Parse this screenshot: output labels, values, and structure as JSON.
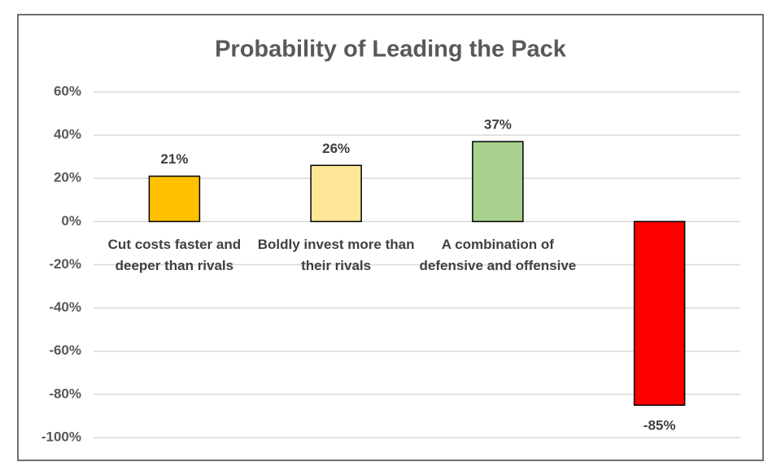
{
  "chart_data": {
    "type": "bar",
    "title": "Probability of Leading the Pack",
    "categories": [
      "Cut costs faster and deeper than rivals",
      "Boldly invest more than their rivals",
      "A combination of defensive and offensive",
      null
    ],
    "values": [
      21,
      26,
      37,
      -85
    ],
    "value_labels": [
      "21%",
      "26%",
      "37%",
      "-85%"
    ],
    "colors": [
      "#ffc000",
      "#ffe699",
      "#a9d18e",
      "#ff0000"
    ],
    "ylim": [
      -100,
      60
    ],
    "yticks": [
      {
        "value": -100,
        "label": "-100%"
      },
      {
        "value": -80,
        "label": "-80%"
      },
      {
        "value": -60,
        "label": "-60%"
      },
      {
        "value": -40,
        "label": "-40%"
      },
      {
        "value": -20,
        "label": "-20%"
      },
      {
        "value": 0,
        "label": "0%"
      },
      {
        "value": 20,
        "label": "20%"
      },
      {
        "value": 40,
        "label": "40%"
      },
      {
        "value": 60,
        "label": "60%"
      }
    ],
    "grid": true
  }
}
